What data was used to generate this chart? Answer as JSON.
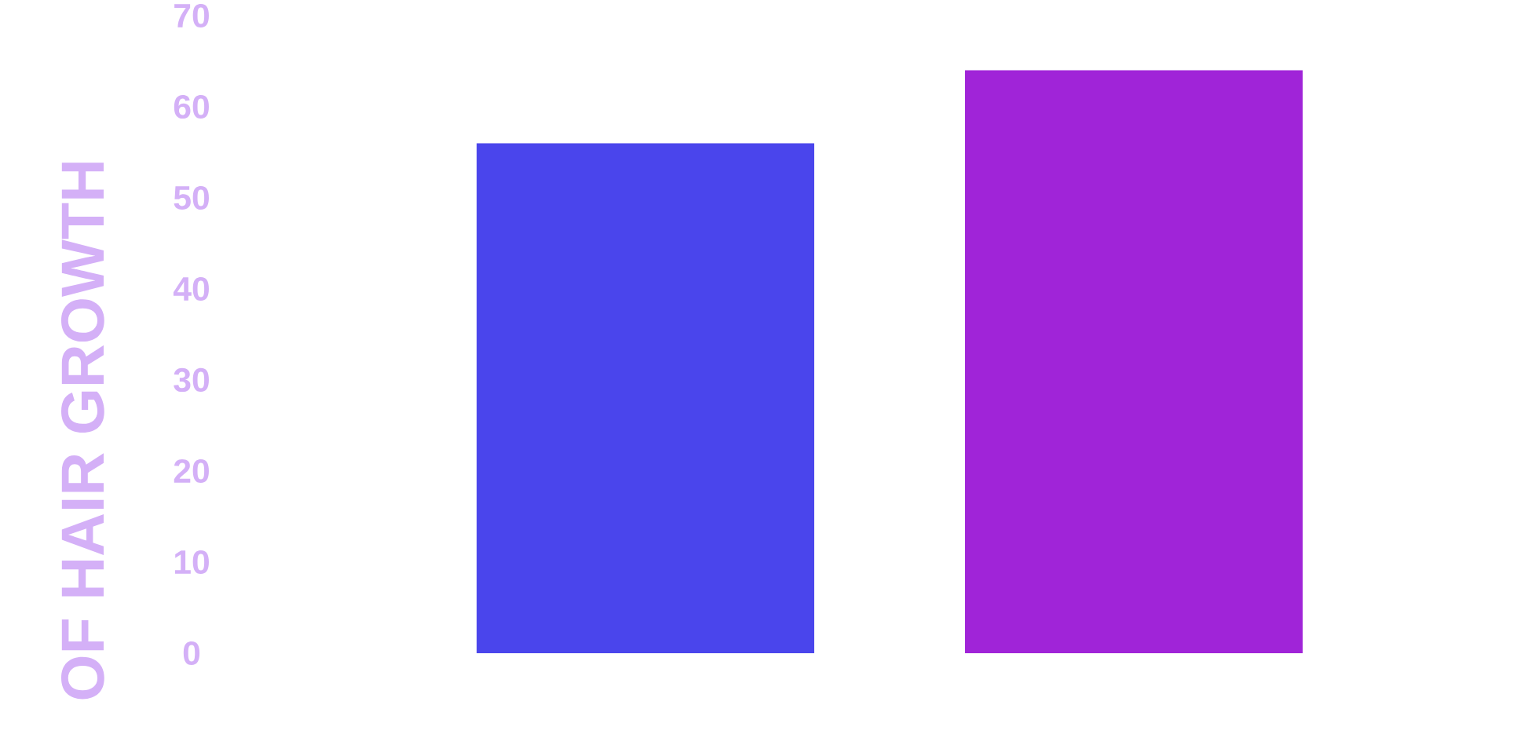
{
  "chart_data": {
    "type": "bar",
    "ylabel": "OF HAIR GROWTH",
    "categories": [
      null,
      null
    ],
    "values": [
      56,
      64
    ],
    "colors": [
      "#4a45ec",
      "#a024d8"
    ],
    "ylim": [
      0,
      70
    ],
    "yticks": [
      0,
      10,
      20,
      30,
      40,
      50,
      60,
      70
    ]
  }
}
